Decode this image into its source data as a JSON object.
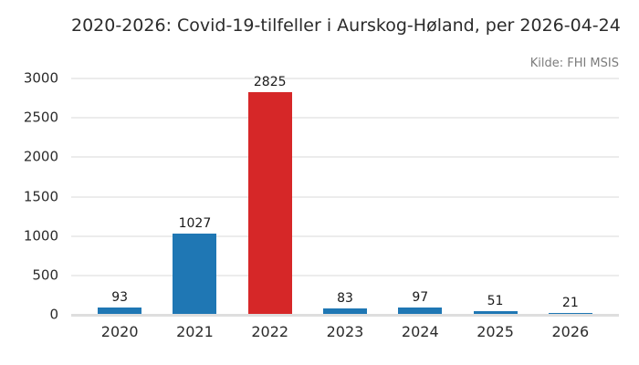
{
  "chart": {
    "title": "2020-2026: Covid-19-tilfeller i Aurskog-Høland, per 2026-04-24",
    "source": "Kilde: FHI MSIS"
  },
  "chart_data": {
    "type": "bar",
    "title": "2020-2026: Covid-19-tilfeller i Aurskog-Høland, per 2026-04-24",
    "source_annotation": "Kilde: FHI MSIS",
    "categories": [
      "2020",
      "2021",
      "2022",
      "2023",
      "2024",
      "2025",
      "2026"
    ],
    "values": [
      93,
      1027,
      2825,
      83,
      97,
      51,
      21
    ],
    "bar_colors": [
      "#1f77b4",
      "#1f77b4",
      "#d62728",
      "#1f77b4",
      "#1f77b4",
      "#1f77b4",
      "#1f77b4"
    ],
    "value_labels_shown": true,
    "xlabel": "",
    "ylabel": "",
    "ylim": [
      0,
      3000
    ],
    "yticks": [
      0,
      500,
      1000,
      1500,
      2000,
      2500,
      3000
    ],
    "grid": "horizontal",
    "legend": "none",
    "colors": {
      "default_bar": "#1f77b4",
      "highlight_bar": "#d62728",
      "gridline": "#ececec",
      "axis_line": "#dedede",
      "text": "#2b2b2b",
      "source_text": "#7c7c7c",
      "background": "#ffffff"
    }
  }
}
